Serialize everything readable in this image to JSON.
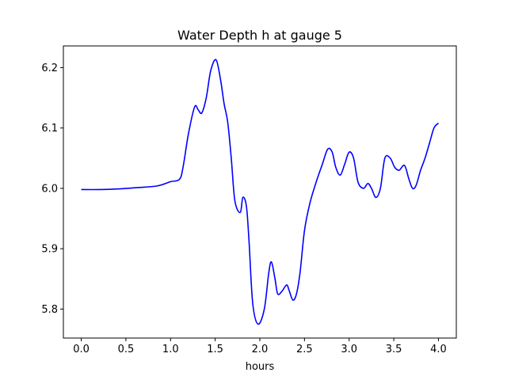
{
  "chart_data": {
    "type": "line",
    "title": "Water Depth h at gauge 5",
    "xlabel": "hours",
    "ylabel": "",
    "xlim": [
      -0.2,
      4.2
    ],
    "ylim": [
      5.752,
      6.236
    ],
    "xticks": [
      "0.0",
      "0.5",
      "1.0",
      "1.5",
      "2.0",
      "2.5",
      "3.0",
      "3.5",
      "4.0"
    ],
    "yticks": [
      "5.8",
      "5.9",
      "6.0",
      "6.1",
      "6.2"
    ],
    "grid": false,
    "series": [
      {
        "color": "#0000ff",
        "x": [
          0.0,
          0.2,
          0.4,
          0.6,
          0.85,
          1.0,
          1.1,
          1.14,
          1.2,
          1.27,
          1.31,
          1.35,
          1.4,
          1.45,
          1.51,
          1.56,
          1.6,
          1.64,
          1.68,
          1.72,
          1.78,
          1.81,
          1.85,
          1.88,
          1.92,
          1.98,
          2.05,
          2.1,
          2.13,
          2.17,
          2.2,
          2.25,
          2.3,
          2.33,
          2.37,
          2.41,
          2.45,
          2.5,
          2.56,
          2.63,
          2.7,
          2.76,
          2.81,
          2.85,
          2.9,
          2.95,
          3.0,
          3.05,
          3.1,
          3.16,
          3.21,
          3.25,
          3.3,
          3.35,
          3.4,
          3.46,
          3.51,
          3.56,
          3.62,
          3.67,
          3.71,
          3.75,
          3.8,
          3.85,
          3.9,
          3.95,
          4.0
        ],
        "y": [
          5.998,
          5.998,
          5.999,
          6.001,
          6.004,
          6.011,
          6.015,
          6.035,
          6.09,
          6.135,
          6.13,
          6.125,
          6.15,
          6.195,
          6.213,
          6.18,
          6.14,
          6.11,
          6.05,
          5.98,
          5.96,
          5.985,
          5.97,
          5.91,
          5.81,
          5.775,
          5.8,
          5.86,
          5.878,
          5.85,
          5.825,
          5.83,
          5.84,
          5.83,
          5.815,
          5.825,
          5.86,
          5.93,
          5.975,
          6.01,
          6.04,
          6.065,
          6.06,
          6.035,
          6.022,
          6.04,
          6.06,
          6.05,
          6.01,
          6.0,
          6.008,
          6.0,
          5.985,
          6.0,
          6.05,
          6.05,
          6.035,
          6.03,
          6.038,
          6.015,
          6.0,
          6.005,
          6.03,
          6.05,
          6.075,
          6.1,
          6.108
        ]
      }
    ]
  }
}
